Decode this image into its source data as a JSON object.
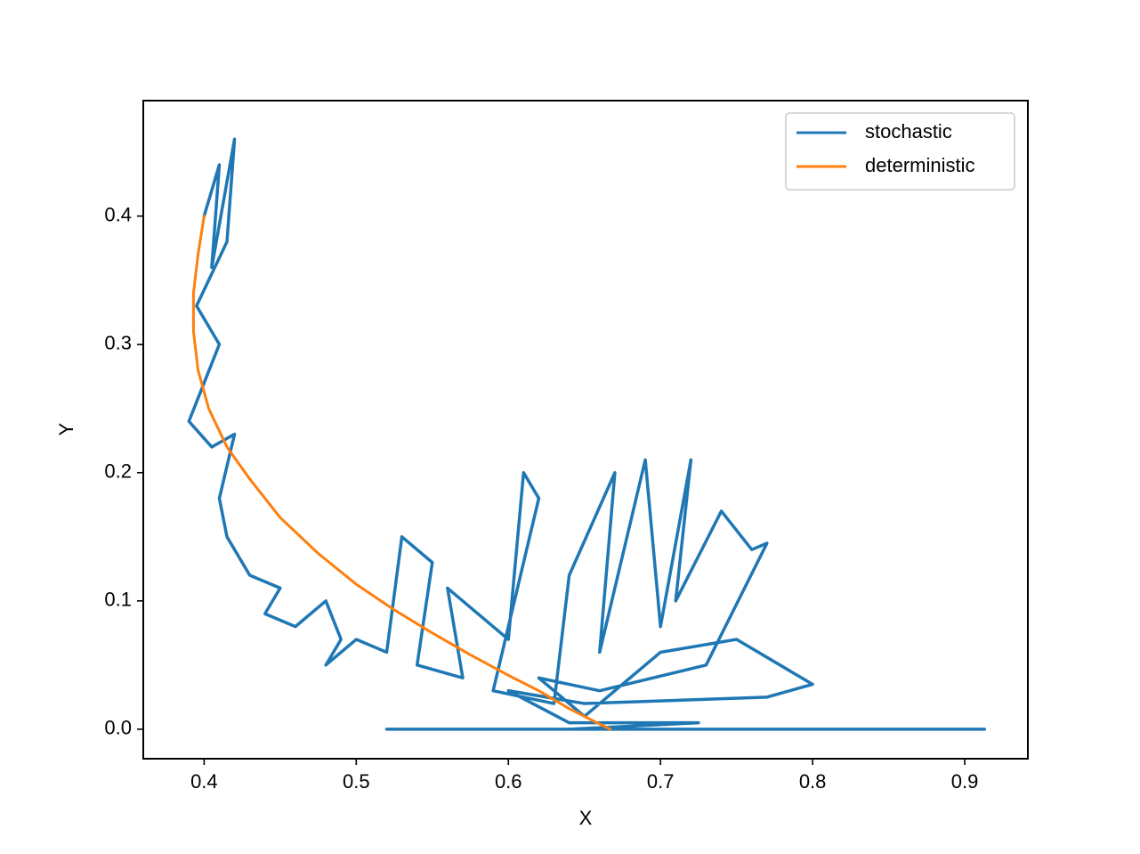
{
  "chart_data": {
    "type": "line",
    "x_label": "X",
    "y_label": "Y",
    "xlim": [
      0.36,
      0.9415
    ],
    "ylim": [
      -0.023,
      0.49
    ],
    "xticks": [
      0.4,
      0.5,
      0.6,
      0.7,
      0.8,
      0.9
    ],
    "yticks": [
      {
        "value": 0,
        "label": "0.0"
      },
      0.1,
      0.2,
      0.3,
      0.4
    ],
    "legend": "upper right",
    "series": [
      {
        "name": "stochastic",
        "color": "#1f77b4",
        "x": [
          0.4,
          0.41,
          0.405,
          0.42,
          0.415,
          0.395,
          0.41,
          0.39,
          0.405,
          0.42,
          0.41,
          0.415,
          0.43,
          0.45,
          0.44,
          0.46,
          0.48,
          0.49,
          0.48,
          0.5,
          0.52,
          0.53,
          0.55,
          0.54,
          0.57,
          0.56,
          0.6,
          0.61,
          0.62,
          0.59,
          0.63,
          0.64,
          0.67,
          0.66,
          0.69,
          0.7,
          0.72,
          0.71,
          0.74,
          0.76,
          0.77,
          0.73,
          0.66,
          0.62,
          0.65,
          0.7,
          0.75,
          0.8,
          0.77,
          0.65,
          0.6,
          0.64,
          0.725,
          0.64,
          0.52,
          0.913
        ],
        "y": [
          0.4,
          0.44,
          0.36,
          0.46,
          0.38,
          0.33,
          0.3,
          0.24,
          0.22,
          0.23,
          0.18,
          0.15,
          0.12,
          0.11,
          0.09,
          0.08,
          0.1,
          0.07,
          0.05,
          0.07,
          0.06,
          0.15,
          0.13,
          0.05,
          0.04,
          0.11,
          0.07,
          0.2,
          0.18,
          0.03,
          0.02,
          0.12,
          0.2,
          0.06,
          0.21,
          0.08,
          0.21,
          0.1,
          0.17,
          0.14,
          0.145,
          0.05,
          0.03,
          0.04,
          0.01,
          0.06,
          0.07,
          0.035,
          0.025,
          0.02,
          0.03,
          0.005,
          0.005,
          0.0,
          0.0,
          0.0
        ]
      },
      {
        "name": "deterministic",
        "color": "#ff7f0e",
        "x": [
          0.4,
          0.396,
          0.393,
          0.393,
          0.396,
          0.403,
          0.415,
          0.43,
          0.45,
          0.475,
          0.5,
          0.525,
          0.55,
          0.575,
          0.6,
          0.62,
          0.64,
          0.655,
          0.667
        ],
        "y": [
          0.4,
          0.37,
          0.34,
          0.31,
          0.28,
          0.25,
          0.22,
          0.195,
          0.165,
          0.137,
          0.113,
          0.093,
          0.075,
          0.058,
          0.042,
          0.03,
          0.016,
          0.007,
          0.0
        ]
      }
    ]
  }
}
